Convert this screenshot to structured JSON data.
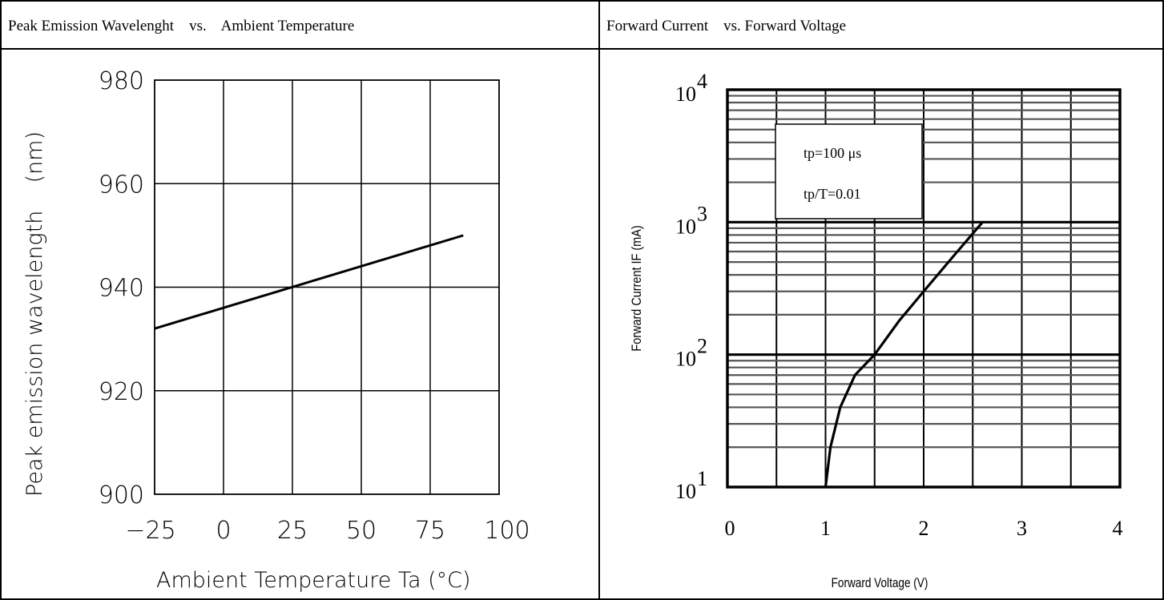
{
  "panels": {
    "left_title": "Peak Emission Wavelenght    vs.    Ambient Temperature",
    "right_title": "Forward Current    vs. Forward Voltage"
  },
  "chart_data": [
    {
      "type": "line",
      "title": "Peak Emission Wavelenght    vs.    Ambient Temperature",
      "xlabel": "Ambient Temperature  Ta (°C)",
      "ylabel": "Peak emission wavelength    (nm)",
      "xlim": [
        -25,
        100
      ],
      "ylim": [
        900,
        980
      ],
      "xticks": [
        -25,
        0,
        25,
        50,
        75,
        100
      ],
      "yticks": [
        900,
        920,
        940,
        960,
        980
      ],
      "xtick_labels": [
        "−25",
        "0",
        "25",
        "50",
        "75",
        "100"
      ],
      "ytick_labels": [
        "900",
        "920",
        "940",
        "960",
        "980"
      ],
      "grid": true,
      "series": [
        {
          "x": [
            -25,
            87
          ],
          "y": [
            932,
            950
          ],
          "color": "#000000"
        }
      ]
    },
    {
      "type": "line",
      "title": "Forward Current    vs. Forward Voltage",
      "xlabel": "Forward Voltage (V)",
      "ylabel": "Forward Current IF (mA)",
      "xlim": [
        0,
        4
      ],
      "ylim": [
        10,
        10000
      ],
      "y_scale": "log",
      "xticks": [
        0,
        1,
        2,
        3,
        4
      ],
      "xtick_labels": [
        "0",
        "1",
        "2",
        "3",
        "4"
      ],
      "ytick_bases": [
        "10",
        "10",
        "10",
        "10"
      ],
      "ytick_exponents": [
        "1",
        "2",
        "3",
        "4"
      ],
      "grid": true,
      "annotations": [
        "tp=100 μs",
        "tp/T=0.01"
      ],
      "series": [
        {
          "x": [
            1.0,
            1.05,
            1.15,
            1.3,
            1.5,
            1.75,
            2.0,
            2.3,
            2.6
          ],
          "y": [
            10,
            20,
            40,
            70,
            100,
            180,
            300,
            550,
            1000
          ],
          "color": "#000000"
        }
      ]
    }
  ]
}
